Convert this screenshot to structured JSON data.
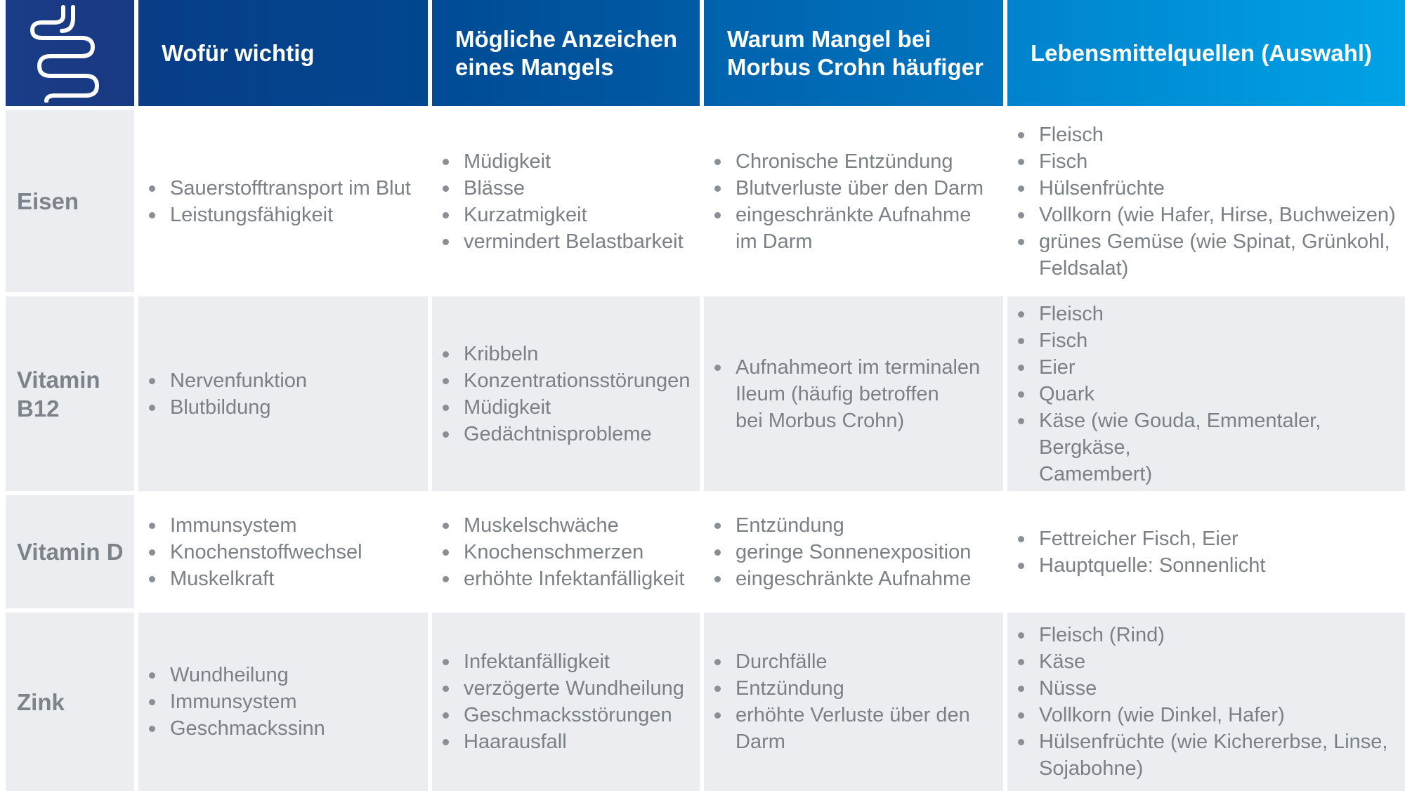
{
  "header": {
    "icon": "intestine-icon",
    "columns": [
      "Wofür wichtig",
      "Mögliche Anzeichen\neines Mangels",
      "Warum Mangel bei\nMorbus Crohn häufiger",
      "Lebensmittelquellen (Auswahl)"
    ]
  },
  "rows": [
    {
      "name": "Eisen",
      "importance": [
        "Sauerstofftransport im Blut",
        "Leistungsfähigkeit"
      ],
      "signs": [
        "Müdigkeit",
        "Blässe",
        "Kurzatmigkeit",
        "vermindert Belastbarkeit"
      ],
      "reasons": [
        "Chronische Entzündung",
        "Blutverluste über den Darm",
        "eingeschränkte Aufnahme\nim Darm"
      ],
      "sources": [
        "Fleisch",
        "Fisch",
        "Hülsenfrüchte",
        "Vollkorn (wie Hafer, Hirse, Buchweizen)",
        "grünes Gemüse (wie Spinat, Grünkohl,\nFeldsalat)"
      ]
    },
    {
      "name": "Vitamin\nB12",
      "importance": [
        "Nervenfunktion",
        "Blutbildung"
      ],
      "signs": [
        "Kribbeln",
        "Konzentrationsstörungen",
        "Müdigkeit",
        "Gedächtnisprobleme"
      ],
      "reasons": [
        "Aufnahmeort im terminalen\nIleum (häufig betroffen\nbei Morbus Crohn)"
      ],
      "sources": [
        "Fleisch",
        "Fisch",
        "Eier",
        "Quark",
        "Käse (wie Gouda, Emmentaler, Bergkäse,\nCamembert)"
      ]
    },
    {
      "name": "Vitamin D",
      "importance": [
        "Immunsystem",
        "Knochenstoffwechsel",
        "Muskelkraft"
      ],
      "signs": [
        "Muskelschwäche",
        "Knochenschmerzen",
        "erhöhte Infektanfälligkeit"
      ],
      "reasons": [
        "Entzündung",
        "geringe Sonnenexposition",
        "eingeschränkte Aufnahme"
      ],
      "sources": [
        "Fettreicher Fisch, Eier",
        "Hauptquelle: Sonnenlicht"
      ]
    },
    {
      "name": "Zink",
      "importance": [
        "Wundheilung",
        "Immunsystem",
        "Geschmackssinn"
      ],
      "signs": [
        "Infektanfälligkeit",
        "verzögerte Wundheilung",
        "Geschmacksstörungen",
        "Haarausfall"
      ],
      "reasons": [
        "Durchfälle",
        "Entzündung",
        "erhöhte Verluste über den\nDarm"
      ],
      "sources": [
        "Fleisch (Rind)",
        "Käse",
        "Nüsse",
        "Vollkorn (wie Dinkel, Hafer)",
        "Hülsenfrüchte (wie Kichererbse, Linse,\nSojabohne)"
      ]
    }
  ]
}
